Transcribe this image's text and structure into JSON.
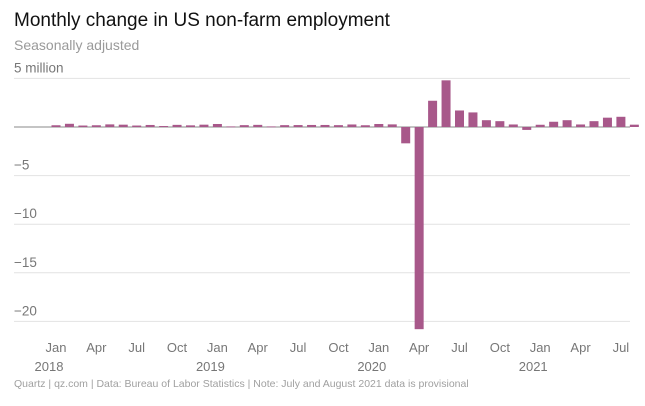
{
  "chart_data": {
    "type": "bar",
    "title": "Monthly change in US non-farm employment",
    "subtitle": "Seasonally adjusted",
    "source": "Quartz | qz.com | Data: Bureau of Labor Statistics | Note: July and August 2021 data is provisional",
    "ylabel": "million",
    "ylim": [
      -21,
      5
    ],
    "yticks": [
      {
        "value": 5,
        "label": "5 million"
      },
      {
        "value": 0,
        "label": ""
      },
      {
        "value": -5,
        "label": "−5"
      },
      {
        "value": -10,
        "label": "−10"
      },
      {
        "value": -15,
        "label": "−15"
      },
      {
        "value": -20,
        "label": "−20"
      }
    ],
    "bar_color": "#a8588a",
    "categories": [
      "2018-01",
      "2018-02",
      "2018-03",
      "2018-04",
      "2018-05",
      "2018-06",
      "2018-07",
      "2018-08",
      "2018-09",
      "2018-10",
      "2018-11",
      "2018-12",
      "2019-01",
      "2019-02",
      "2019-03",
      "2019-04",
      "2019-05",
      "2019-06",
      "2019-07",
      "2019-08",
      "2019-09",
      "2019-10",
      "2019-11",
      "2019-12",
      "2020-01",
      "2020-02",
      "2020-03",
      "2020-04",
      "2020-05",
      "2020-06",
      "2020-07",
      "2020-08",
      "2020-09",
      "2020-10",
      "2020-11",
      "2020-12",
      "2021-01",
      "2021-02",
      "2021-03",
      "2021-04",
      "2021-05",
      "2021-06",
      "2021-07",
      "2021-08"
    ],
    "values": [
      0.18,
      0.33,
      0.15,
      0.18,
      0.27,
      0.24,
      0.15,
      0.21,
      0.1,
      0.22,
      0.17,
      0.24,
      0.31,
      0.06,
      0.19,
      0.22,
      0.06,
      0.19,
      0.2,
      0.21,
      0.21,
      0.19,
      0.26,
      0.18,
      0.31,
      0.27,
      -1.68,
      -20.8,
      2.7,
      4.8,
      1.7,
      1.5,
      0.7,
      0.6,
      0.26,
      -0.3,
      0.23,
      0.54,
      0.7,
      0.26,
      0.6,
      0.96,
      1.05,
      0.24
    ],
    "xticks": [
      {
        "index": 0,
        "label": "Jan",
        "year": "2018"
      },
      {
        "index": 3,
        "label": "Apr"
      },
      {
        "index": 6,
        "label": "Jul"
      },
      {
        "index": 9,
        "label": "Oct"
      },
      {
        "index": 12,
        "label": "Jan",
        "year": "2019"
      },
      {
        "index": 15,
        "label": "Apr"
      },
      {
        "index": 18,
        "label": "Jul"
      },
      {
        "index": 21,
        "label": "Oct"
      },
      {
        "index": 24,
        "label": "Jan",
        "year": "2020"
      },
      {
        "index": 27,
        "label": "Apr"
      },
      {
        "index": 30,
        "label": "Jul"
      },
      {
        "index": 33,
        "label": "Oct"
      },
      {
        "index": 36,
        "label": "Jan",
        "year": "2021"
      },
      {
        "index": 39,
        "label": "Apr"
      },
      {
        "index": 42,
        "label": "Jul"
      }
    ]
  }
}
